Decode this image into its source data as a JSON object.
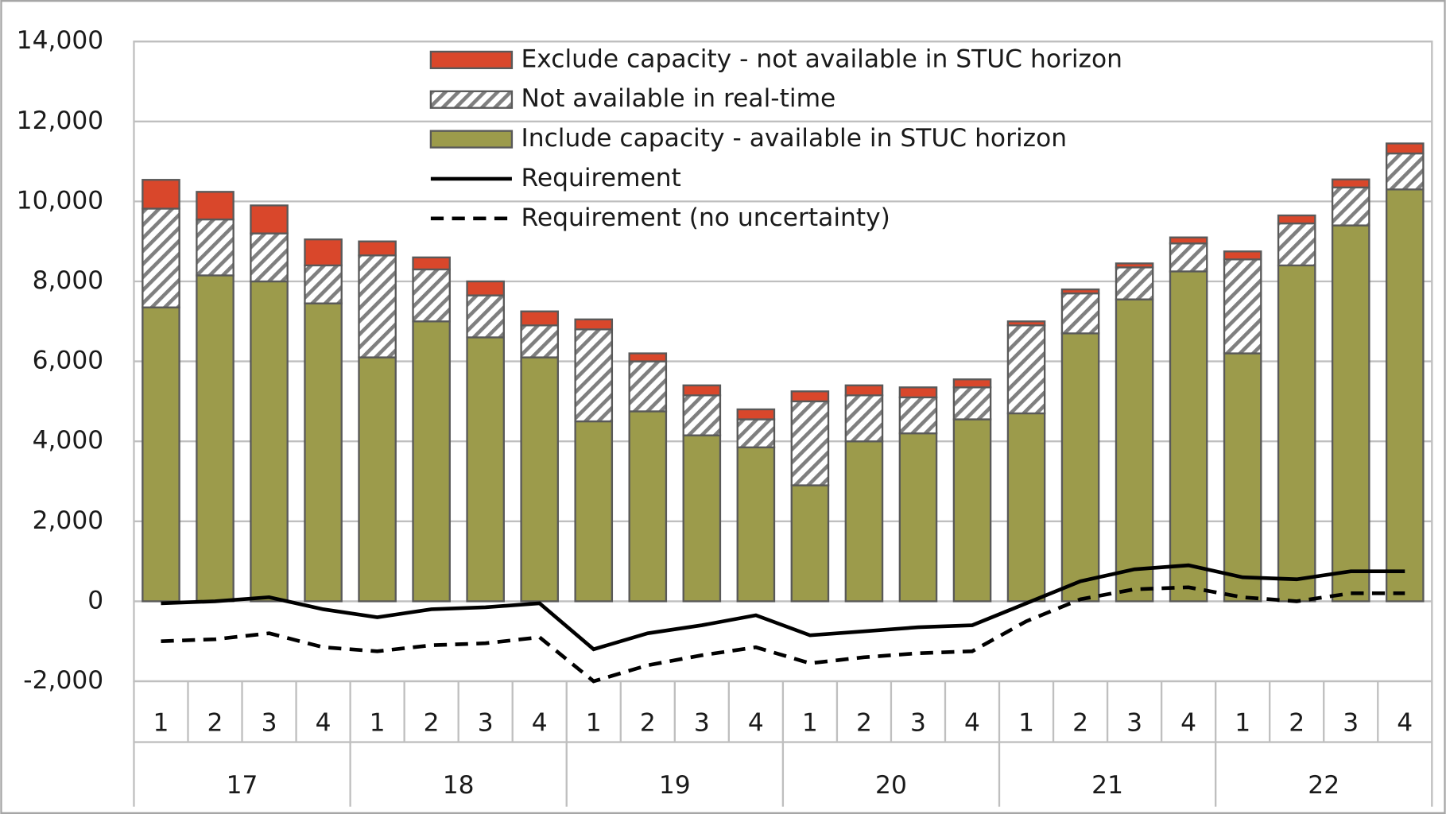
{
  "chart_data": {
    "type": "bar",
    "stacked": true,
    "categories": [
      "1",
      "2",
      "3",
      "4",
      "1",
      "2",
      "3",
      "4",
      "1",
      "2",
      "3",
      "4",
      "1",
      "2",
      "3",
      "4",
      "1",
      "2",
      "3",
      "4",
      "1",
      "2",
      "3",
      "4"
    ],
    "groups": [
      "17",
      "18",
      "19",
      "20",
      "21",
      "22"
    ],
    "series": [
      {
        "name": "Include capacity - available in STUC horizon",
        "type": "bar",
        "color": "#9c9b4b",
        "values": [
          7350,
          8150,
          8000,
          7450,
          6100,
          7000,
          6600,
          6100,
          4500,
          4750,
          4150,
          3850,
          2900,
          4000,
          4200,
          4550,
          4700,
          6700,
          7550,
          8250,
          6200,
          8400,
          9400,
          10300
        ]
      },
      {
        "name": "Not available in real-time",
        "type": "bar",
        "color": "#7f7f7f",
        "hatch": true,
        "values": [
          2470,
          1400,
          1200,
          950,
          2550,
          1300,
          1050,
          800,
          2300,
          1250,
          1000,
          700,
          2100,
          1150,
          900,
          800,
          2200,
          1000,
          800,
          700,
          2350,
          1050,
          950,
          900
        ]
      },
      {
        "name": "Exclude capacity - not available in STUC horizon",
        "type": "bar",
        "color": "#d9472b",
        "values": [
          720,
          690,
          700,
          650,
          350,
          300,
          350,
          350,
          250,
          200,
          250,
          250,
          250,
          250,
          250,
          200,
          100,
          100,
          100,
          150,
          200,
          200,
          200,
          250
        ]
      },
      {
        "name": "Requirement",
        "type": "line",
        "color": "#000000",
        "dash": "solid",
        "values": [
          -50,
          0,
          100,
          -200,
          -400,
          -200,
          -150,
          -50,
          -1200,
          -800,
          -600,
          -350,
          -850,
          -750,
          -650,
          -600,
          -50,
          500,
          800,
          900,
          600,
          550,
          750,
          750
        ]
      },
      {
        "name": "Requirement (no uncertainty)",
        "type": "line",
        "color": "#000000",
        "dash": "dashed",
        "values": [
          -1000,
          -950,
          -800,
          -1150,
          -1250,
          -1100,
          -1050,
          -900,
          -2000,
          -1600,
          -1350,
          -1150,
          -1550,
          -1400,
          -1300,
          -1250,
          -500,
          50,
          300,
          350,
          100,
          0,
          200,
          200
        ]
      }
    ],
    "ylim": [
      -2000,
      14000
    ],
    "yticks": [
      {
        "value": -2000,
        "label": "-2,000"
      },
      0,
      {
        "value": 2000,
        "label": "2,000"
      },
      {
        "value": 4000,
        "label": "4,000"
      },
      {
        "value": 6000,
        "label": "6,000"
      },
      {
        "value": 8000,
        "label": "8,000"
      },
      {
        "value": 10000,
        "label": "10,000"
      },
      {
        "value": 12000,
        "label": "12,000"
      },
      {
        "value": 14000,
        "label": "14,000"
      }
    ],
    "grid": true,
    "legend": "top"
  }
}
